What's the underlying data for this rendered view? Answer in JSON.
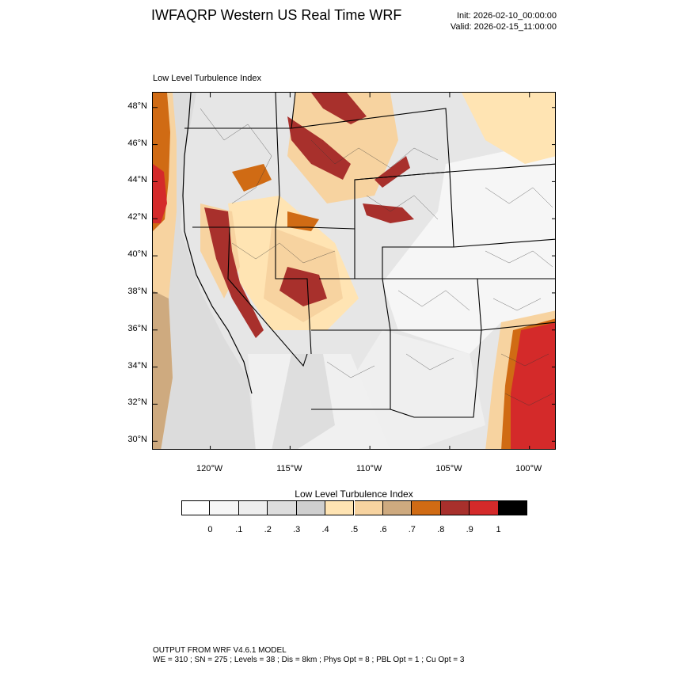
{
  "header": {
    "title": "IWFAQRP Western US Real Time WRF",
    "init": "Init: 2026-02-10_00:00:00",
    "valid": "Valid: 2026-02-15_11:00:00"
  },
  "map": {
    "title": "Low Level Turbulence Index",
    "lon_range": [
      -123.6,
      -98.3
    ],
    "lat_range": [
      29.5,
      48.8
    ],
    "lat_ticks": [
      "48°N",
      "46°N",
      "44°N",
      "42°N",
      "40°N",
      "38°N",
      "36°N",
      "34°N",
      "32°N",
      "30°N"
    ],
    "lat_tick_values": [
      48,
      46,
      44,
      42,
      40,
      38,
      36,
      34,
      32,
      30
    ],
    "lon_ticks": [
      "120°W",
      "115°W",
      "110°W",
      "105°W",
      "100°W"
    ],
    "lon_tick_values": [
      -120,
      -115,
      -110,
      -105,
      -100
    ]
  },
  "colorbar": {
    "title": "Low Level Turbulence Index",
    "labels": [
      "0",
      ".1",
      ".2",
      ".3",
      ".4",
      ".5",
      ".6",
      ".7",
      ".8",
      ".9",
      "1"
    ],
    "colors": [
      "#ffffff",
      "#f6f6f6",
      "#eeeeee",
      "#dddddd",
      "#cfcfcf",
      "#ffe4b3",
      "#f7d3a0",
      "#ceaa7f",
      "#d06b14",
      "#a8302c",
      "#d42a2a",
      "#000000"
    ]
  },
  "footer": {
    "line1": "OUTPUT FROM WRF V4.6.1 MODEL",
    "line2": "WE = 310 ; SN = 275 ; Levels = 38 ; Dis = 8km ; Phys Opt = 8 ; PBL Opt = 1 ; Cu Opt = 3"
  }
}
